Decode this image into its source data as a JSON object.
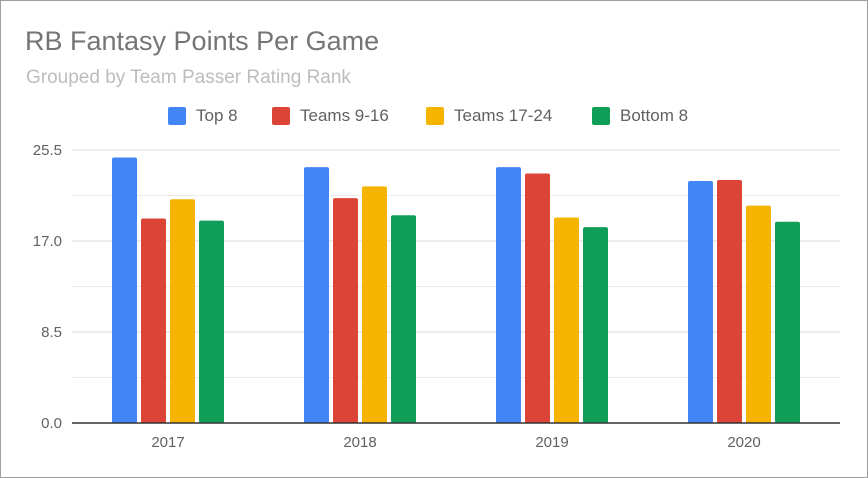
{
  "chart_data": {
    "type": "bar",
    "title": "RB Fantasy Points Per Game",
    "subtitle": "Grouped by Team Passer Rating Rank",
    "categories": [
      "2017",
      "2018",
      "2019",
      "2020"
    ],
    "series": [
      {
        "name": "Top 8",
        "color": "#4285f4",
        "values": [
          24.8,
          23.9,
          23.9,
          22.6
        ]
      },
      {
        "name": "Teams 9-16",
        "color": "#db4437",
        "values": [
          19.1,
          21.0,
          23.3,
          22.7
        ]
      },
      {
        "name": "Teams 17-24",
        "color": "#f4b400",
        "values": [
          20.9,
          22.1,
          19.2,
          20.3
        ]
      },
      {
        "name": "Bottom 8",
        "color": "#0f9d58",
        "values": [
          18.9,
          19.4,
          18.3,
          18.8
        ]
      }
    ],
    "xlabel": "",
    "ylabel": "",
    "ylim": [
      0,
      25.5
    ],
    "yticks": [
      "0.0",
      "8.5",
      "17.0",
      "25.5"
    ],
    "grid": true,
    "legend_position": "top-center"
  }
}
